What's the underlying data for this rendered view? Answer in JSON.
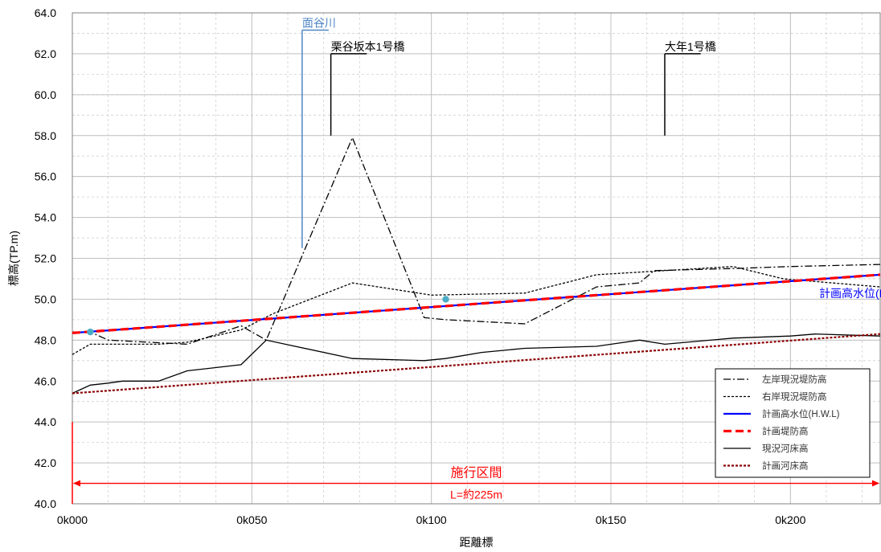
{
  "chart_data": {
    "type": "line",
    "xlabel": "距離標",
    "ylabel": "標高(TP.m)",
    "xlim": [
      0,
      225
    ],
    "ylim": [
      40,
      64
    ],
    "x_ticks": [
      {
        "value": 0,
        "label": "0k000"
      },
      {
        "value": 50,
        "label": "0k050"
      },
      {
        "value": 100,
        "label": "0k100"
      },
      {
        "value": 150,
        "label": "0k150"
      },
      {
        "value": 200,
        "label": "0k200"
      }
    ],
    "y_ticks": [
      "40.0",
      "42.0",
      "44.0",
      "46.0",
      "48.0",
      "50.0",
      "52.0",
      "54.0",
      "56.0",
      "58.0",
      "60.0",
      "62.0",
      "64.0"
    ],
    "grid": true,
    "legend_position": "bottom-right",
    "series": [
      {
        "name": "左岸現況堤防高",
        "style": "dashdot",
        "color": "#000000",
        "points": [
          [
            0,
            48.4
          ],
          [
            5,
            48.4
          ],
          [
            10,
            48.0
          ],
          [
            32,
            47.8
          ],
          [
            47,
            48.7
          ],
          [
            54,
            48.0
          ],
          [
            78,
            57.9
          ],
          [
            98,
            49.1
          ],
          [
            104,
            49.0
          ],
          [
            126,
            48.8
          ],
          [
            146,
            50.6
          ],
          [
            158,
            50.8
          ],
          [
            162,
            51.4
          ],
          [
            184,
            51.5
          ],
          [
            200,
            51.6
          ],
          [
            225,
            51.7
          ]
        ]
      },
      {
        "name": "右岸現況堤防高",
        "style": "dotted",
        "color": "#000000",
        "points": [
          [
            0,
            47.3
          ],
          [
            5,
            47.8
          ],
          [
            14,
            47.8
          ],
          [
            24,
            47.8
          ],
          [
            32,
            47.9
          ],
          [
            47,
            48.5
          ],
          [
            56,
            49.3
          ],
          [
            78,
            50.8
          ],
          [
            100,
            50.2
          ],
          [
            126,
            50.3
          ],
          [
            146,
            51.2
          ],
          [
            165,
            51.4
          ],
          [
            184,
            51.6
          ],
          [
            198,
            51.0
          ],
          [
            225,
            50.6
          ]
        ]
      },
      {
        "name": "計画高水位(H.W.L)",
        "style": "solid",
        "color": "#0000ff",
        "points": [
          [
            0,
            48.35
          ],
          [
            225,
            51.2
          ]
        ]
      },
      {
        "name": "計画堤防高",
        "style": "dashed",
        "color": "#ff0000",
        "points": [
          [
            0,
            48.35
          ],
          [
            225,
            51.2
          ]
        ]
      },
      {
        "name": "現況河床高",
        "style": "solid",
        "color": "#000000",
        "points": [
          [
            0,
            45.4
          ],
          [
            5,
            45.8
          ],
          [
            10,
            45.9
          ],
          [
            14,
            46.0
          ],
          [
            24,
            46.0
          ],
          [
            32,
            46.5
          ],
          [
            47,
            46.8
          ],
          [
            54,
            48.0
          ],
          [
            78,
            47.1
          ],
          [
            98,
            47.0
          ],
          [
            104,
            47.1
          ],
          [
            114,
            47.4
          ],
          [
            126,
            47.6
          ],
          [
            146,
            47.7
          ],
          [
            158,
            48.0
          ],
          [
            165,
            47.8
          ],
          [
            184,
            48.1
          ],
          [
            200,
            48.2
          ],
          [
            207,
            48.3
          ],
          [
            225,
            48.2
          ]
        ]
      },
      {
        "name": "計画河床高",
        "style": "dotted",
        "color": "#8b0000",
        "points": [
          [
            0,
            45.4
          ],
          [
            225,
            48.3
          ]
        ]
      }
    ],
    "markers": [
      {
        "x": 5,
        "y": 48.4,
        "color": "#4bacc6"
      },
      {
        "x": 104,
        "y": 50.0,
        "color": "#4bacc6"
      }
    ],
    "annotations": {
      "tributary": {
        "label": "面谷川",
        "x": 64,
        "y_top": 63.0,
        "y_bottom": 52.5,
        "color": "#4f86c6"
      },
      "bridges": [
        {
          "label": "栗谷坂本1号橋",
          "x": 72,
          "y_top": 62.0,
          "y_bottom": 58.0,
          "flag_to_x": 82
        },
        {
          "label": "大年1号橋",
          "x": 165,
          "y_top": 62.0,
          "y_bottom": 58.0,
          "flag_to_x": 175
        }
      ],
      "hwl_label": {
        "text": "計画高水位(H.W.L)",
        "x": 208,
        "y": 50.1,
        "color": "#0000ff"
      },
      "construction": {
        "title": "施行区間",
        "length": "L=約225m",
        "x_start": 0,
        "x_end": 225,
        "y": 41.0,
        "color": "#ff0000"
      }
    }
  }
}
